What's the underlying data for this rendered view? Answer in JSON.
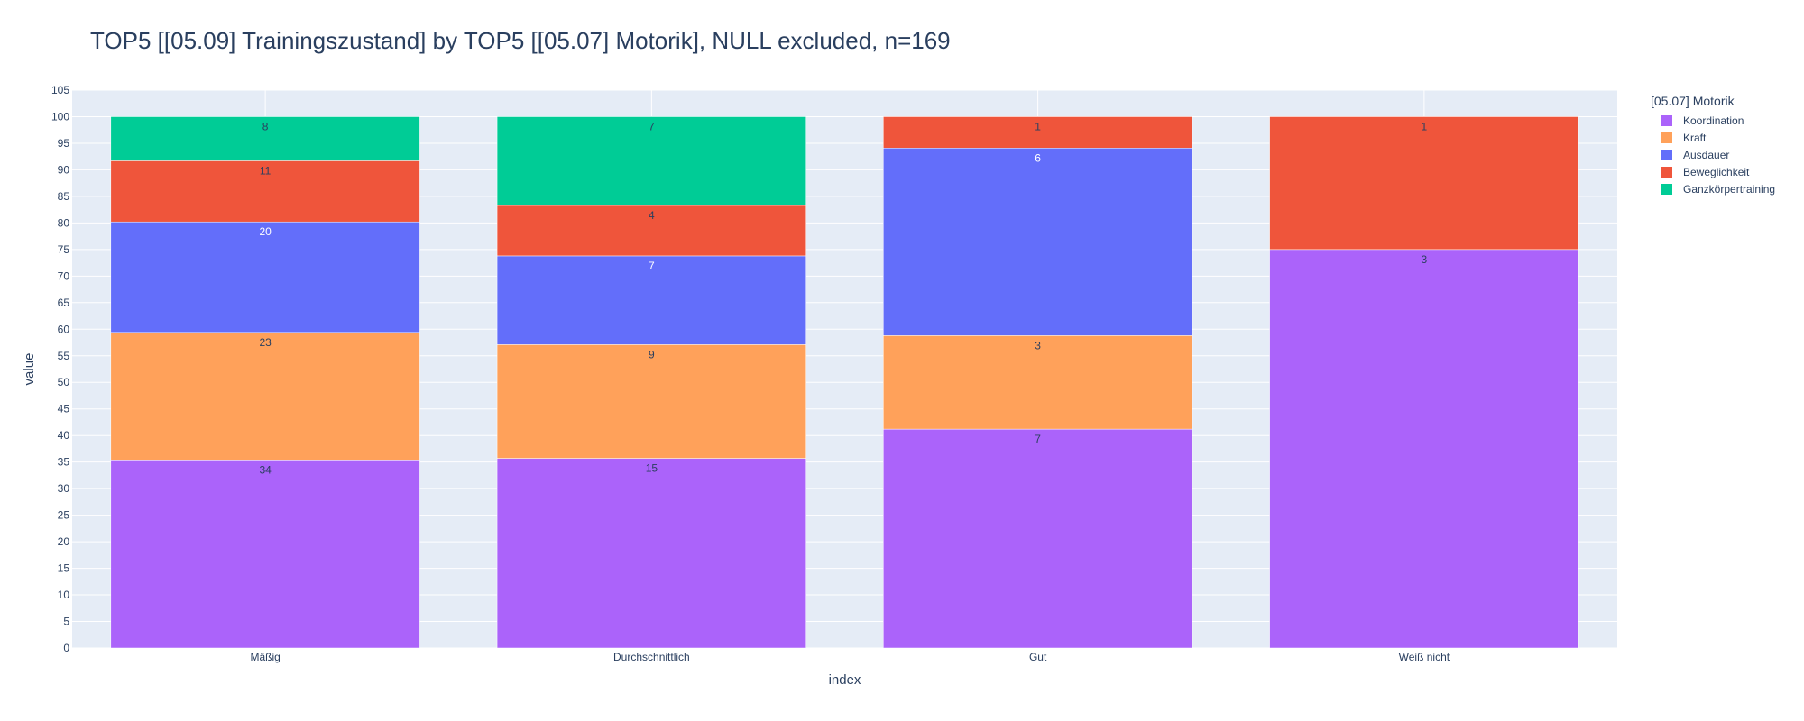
{
  "chart_data": {
    "type": "bar",
    "stacked": true,
    "title": "TOP5 [[05.09] Trainingszustand] by TOP5 [[05.07] Motorik], NULL excluded, n=169",
    "xlabel": "index",
    "ylabel": "value",
    "ylim": [
      0,
      105
    ],
    "ytick_step": 5,
    "grid": true,
    "legend_title": "[05.07] Motorik",
    "legend_position": "top-right",
    "categories": [
      "Mäßig",
      "Durchschnittlich",
      "Gut",
      "Weiß nicht"
    ],
    "series": [
      {
        "name": "Koordination",
        "color": "#ab63fa",
        "label_color": "#2a3f5f",
        "values": [
          35.4,
          35.7,
          41.2,
          75.0
        ],
        "labels": [
          "34",
          "15",
          "7",
          "3"
        ]
      },
      {
        "name": "Kraft",
        "color": "#ffa15a",
        "label_color": "#2a3f5f",
        "values": [
          24.0,
          21.4,
          17.6,
          0
        ],
        "labels": [
          "23",
          "9",
          "3",
          ""
        ]
      },
      {
        "name": "Ausdauer",
        "color": "#636efa",
        "label_color": "#ffffff",
        "values": [
          20.8,
          16.7,
          35.3,
          0
        ],
        "labels": [
          "20",
          "7",
          "6",
          ""
        ]
      },
      {
        "name": "Beweglichkeit",
        "color": "#ef553b",
        "label_color": "#2a3f5f",
        "values": [
          11.5,
          9.5,
          5.9,
          25.0
        ],
        "labels": [
          "11",
          "4",
          "1",
          "1"
        ]
      },
      {
        "name": "Ganzkörpertraining",
        "color": "#00cc96",
        "label_color": "#2a3f5f",
        "values": [
          8.3,
          16.7,
          0,
          0
        ],
        "labels": [
          "8",
          "7",
          "",
          ""
        ]
      }
    ]
  }
}
